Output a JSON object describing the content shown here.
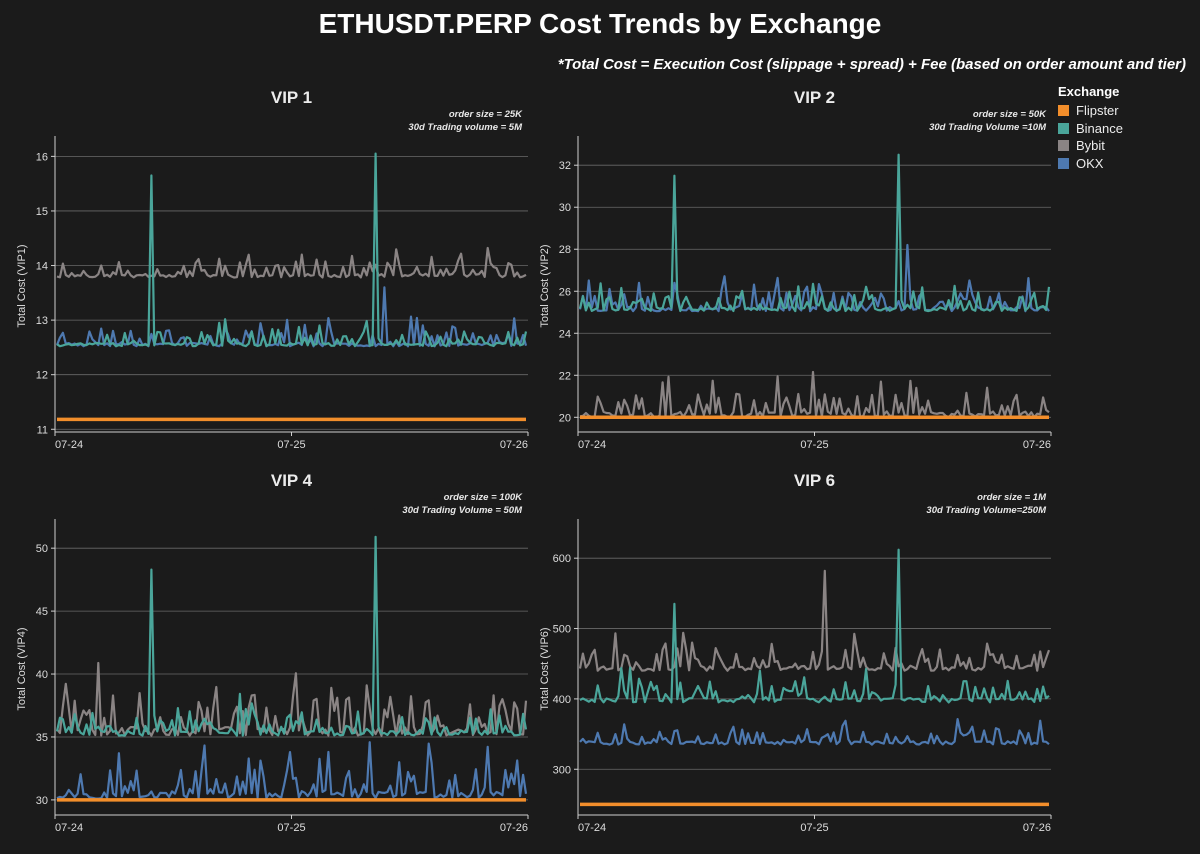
{
  "title": "ETHUSDT.PERP Cost Trends by Exchange",
  "subtitle": "*Total Cost = Execution Cost (slippage + spread) + Fee (based on order amount and tier)",
  "legend": {
    "title": "Exchange",
    "items": [
      {
        "label": "Flipster",
        "color": "#f28e2b"
      },
      {
        "label": "Binance",
        "color": "#4aa59a"
      },
      {
        "label": "Bybit",
        "color": "#8a8484"
      },
      {
        "label": "OKX",
        "color": "#4e79b0"
      }
    ]
  },
  "chart_data": [
    {
      "type": "line",
      "title": "VIP 1",
      "notes": [
        "order size = 25K",
        "30d Trading volume = 5M"
      ],
      "ylabel": "Total Cost (VIP1)",
      "ylim": [
        10.95,
        16.3
      ],
      "yticks": [
        11,
        12,
        13,
        14,
        15,
        16
      ],
      "xticks": [
        "07-24",
        "07-25",
        "07-26"
      ],
      "series": [
        {
          "name": "Bybit",
          "base": 13.78,
          "noise": 0.55,
          "spikes": [
            [
              0.52,
              14.2
            ]
          ],
          "seed": 11
        },
        {
          "name": "OKX",
          "base": 12.52,
          "noise": 0.55,
          "spikes": [
            [
              0.7,
              13.6
            ]
          ],
          "seed": 23
        },
        {
          "name": "Binance",
          "base": 12.52,
          "noise": 0.5,
          "spikes": [
            [
              0.2,
              15.65
            ],
            [
              0.68,
              16.05
            ]
          ],
          "seed": 37
        },
        {
          "name": "Flipster",
          "base": 11.18,
          "noise": 0,
          "spikes": [],
          "seed": 1
        }
      ]
    },
    {
      "type": "line",
      "title": "VIP 2",
      "notes": [
        "order size = 50K",
        "30d Trading Volume =10M"
      ],
      "ylabel": "Total Cost (VIP2)",
      "ylim": [
        19.3,
        33.2
      ],
      "yticks": [
        20,
        22,
        24,
        26,
        28,
        30,
        32
      ],
      "xticks": [
        "07-24",
        "07-25",
        "07-26"
      ],
      "series": [
        {
          "name": "Bybit",
          "base": 20.0,
          "noise": 2.2,
          "spikes": [],
          "seed": 43
        },
        {
          "name": "OKX",
          "base": 25.05,
          "noise": 1.7,
          "spikes": [
            [
              0.7,
              28.2
            ]
          ],
          "seed": 57
        },
        {
          "name": "Binance",
          "base": 25.05,
          "noise": 1.4,
          "spikes": [
            [
              0.2,
              31.5
            ],
            [
              0.68,
              32.5
            ]
          ],
          "seed": 61
        },
        {
          "name": "Flipster",
          "base": 20.0,
          "noise": 0,
          "spikes": [],
          "seed": 2
        }
      ]
    },
    {
      "type": "line",
      "title": "VIP 4",
      "notes": [
        "order size = 100K",
        "30d Trading Volume = 50M"
      ],
      "ylabel": "Total Cost (VIP4)",
      "ylim": [
        28.8,
        52
      ],
      "yticks": [
        30,
        35,
        40,
        45,
        50
      ],
      "xticks": [
        "07-24",
        "07-25",
        "07-26"
      ],
      "series": [
        {
          "name": "Bybit",
          "base": 35.1,
          "noise": 6.0,
          "spikes": [],
          "seed": 71
        },
        {
          "name": "Binance",
          "base": 35.1,
          "noise": 3.5,
          "spikes": [
            [
              0.2,
              48.3
            ],
            [
              0.68,
              50.9
            ]
          ],
          "seed": 83
        },
        {
          "name": "OKX",
          "base": 30.1,
          "noise": 4.5,
          "spikes": [],
          "seed": 97
        },
        {
          "name": "Flipster",
          "base": 30.0,
          "noise": 0,
          "spikes": [],
          "seed": 3
        }
      ]
    },
    {
      "type": "line",
      "title": "VIP 6",
      "notes": [
        "order size = 1M",
        "30d Trading Volume=250M"
      ],
      "ylabel": "Total Cost (VIP6)",
      "ylim": [
        235,
        650
      ],
      "yticks": [
        300,
        400,
        500,
        600
      ],
      "xticks": [
        "07-24",
        "07-25",
        "07-26"
      ],
      "series": [
        {
          "name": "Bybit",
          "base": 440,
          "noise": 60,
          "spikes": [
            [
              0.52,
              582
            ]
          ],
          "seed": 101
        },
        {
          "name": "Binance",
          "base": 395,
          "noise": 55,
          "spikes": [
            [
              0.2,
              535
            ],
            [
              0.68,
              612
            ]
          ],
          "seed": 113
        },
        {
          "name": "OKX",
          "base": 335,
          "noise": 40,
          "spikes": [],
          "seed": 127
        },
        {
          "name": "Flipster",
          "base": 250,
          "noise": 0,
          "spikes": [],
          "seed": 4
        }
      ]
    }
  ]
}
